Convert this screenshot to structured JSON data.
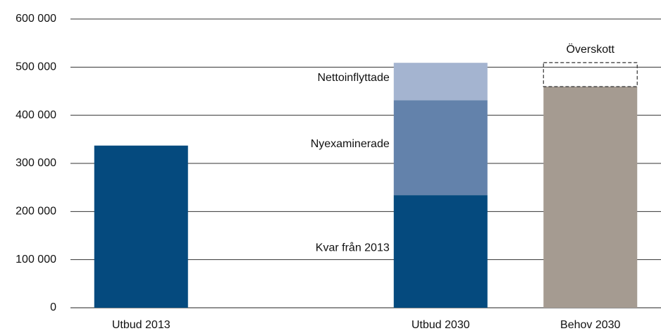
{
  "chart_data": {
    "type": "stacked_bar",
    "categories": [
      "Utbud 2013",
      null,
      "Utbud 2030",
      "Behov 2030"
    ],
    "series": [
      {
        "color": "#054a7e",
        "values": [
          337000,
          null,
          null,
          null
        ]
      },
      {
        "name": "Kvar från 2013",
        "color": "#054a7e",
        "values": [
          null,
          null,
          234000,
          null
        ]
      },
      {
        "name": "Nyexaminerade",
        "color": "#6382ab",
        "values": [
          null,
          null,
          197000,
          null
        ]
      },
      {
        "name": "Nettoinflyttade",
        "color": "#a4b4d0",
        "values": [
          null,
          null,
          78000,
          null
        ]
      },
      {
        "color": "#a59b91",
        "values": [
          null,
          null,
          null,
          459500
        ]
      },
      {
        "name": "Överskott",
        "color": "#333333",
        "style": "dashed",
        "values": [
          null,
          null,
          null,
          50000
        ]
      }
    ],
    "ylim": [
      0,
      600000
    ],
    "yticks": [
      0,
      {
        "value": 100000,
        "label": "100 000"
      },
      {
        "value": 200000,
        "label": "200 000"
      },
      {
        "value": 300000,
        "label": "300 000"
      },
      {
        "value": 400000,
        "label": "400 000"
      },
      {
        "value": 500000,
        "label": "500 000"
      },
      {
        "value": 600000,
        "label": "600 000"
      }
    ],
    "grid": true
  }
}
